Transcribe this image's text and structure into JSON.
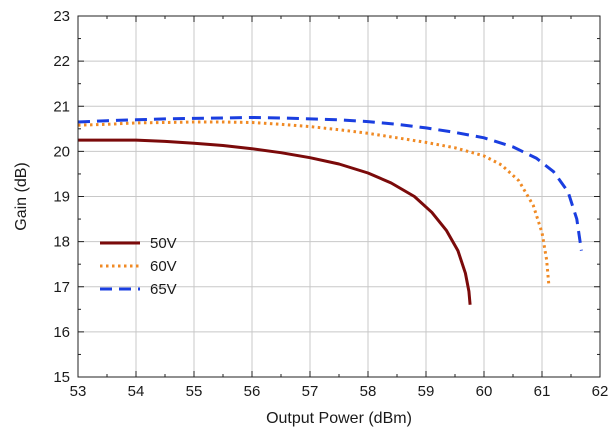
{
  "chart_data": {
    "type": "line",
    "xlabel": "Output Power (dBm)",
    "ylabel": "Gain (dB)",
    "xlim": [
      53,
      62
    ],
    "ylim": [
      15,
      23
    ],
    "xticks": [
      53,
      54,
      55,
      56,
      57,
      58,
      59,
      60,
      61,
      62
    ],
    "yticks": [
      15,
      16,
      17,
      18,
      19,
      20,
      21,
      22,
      23
    ],
    "grid": true,
    "legend_position": "bottom-left",
    "series": [
      {
        "name": "50V",
        "color": "#7b0a0a",
        "style": "solid",
        "points": [
          [
            53,
            20.25
          ],
          [
            53.5,
            20.25
          ],
          [
            54,
            20.25
          ],
          [
            54.5,
            20.22
          ],
          [
            55,
            20.18
          ],
          [
            55.5,
            20.13
          ],
          [
            56,
            20.06
          ],
          [
            56.5,
            19.97
          ],
          [
            57,
            19.86
          ],
          [
            57.5,
            19.72
          ],
          [
            58,
            19.52
          ],
          [
            58.4,
            19.3
          ],
          [
            58.8,
            19.0
          ],
          [
            59.1,
            18.65
          ],
          [
            59.35,
            18.25
          ],
          [
            59.55,
            17.8
          ],
          [
            59.68,
            17.3
          ],
          [
            59.74,
            16.9
          ],
          [
            59.76,
            16.6
          ]
        ]
      },
      {
        "name": "60V",
        "color": "#f08a24",
        "style": "dotted",
        "points": [
          [
            53,
            20.58
          ],
          [
            53.5,
            20.6
          ],
          [
            54,
            20.63
          ],
          [
            54.5,
            20.64
          ],
          [
            55,
            20.65
          ],
          [
            55.5,
            20.65
          ],
          [
            56,
            20.64
          ],
          [
            56.5,
            20.6
          ],
          [
            57,
            20.55
          ],
          [
            57.5,
            20.48
          ],
          [
            58,
            20.4
          ],
          [
            58.5,
            20.3
          ],
          [
            59,
            20.2
          ],
          [
            59.5,
            20.08
          ],
          [
            60,
            19.9
          ],
          [
            60.3,
            19.7
          ],
          [
            60.6,
            19.35
          ],
          [
            60.85,
            18.8
          ],
          [
            61.0,
            18.2
          ],
          [
            61.08,
            17.6
          ],
          [
            61.12,
            17.0
          ]
        ]
      },
      {
        "name": "65V",
        "color": "#1a3ee0",
        "style": "dashed",
        "points": [
          [
            53,
            20.65
          ],
          [
            53.5,
            20.68
          ],
          [
            54,
            20.7
          ],
          [
            54.5,
            20.72
          ],
          [
            55,
            20.73
          ],
          [
            55.5,
            20.74
          ],
          [
            56,
            20.75
          ],
          [
            56.5,
            20.74
          ],
          [
            57,
            20.72
          ],
          [
            57.5,
            20.7
          ],
          [
            58,
            20.66
          ],
          [
            58.5,
            20.6
          ],
          [
            59,
            20.52
          ],
          [
            59.5,
            20.42
          ],
          [
            60,
            20.3
          ],
          [
            60.5,
            20.1
          ],
          [
            60.9,
            19.85
          ],
          [
            61.2,
            19.55
          ],
          [
            61.45,
            19.1
          ],
          [
            61.6,
            18.5
          ],
          [
            61.68,
            17.8
          ]
        ]
      }
    ]
  }
}
